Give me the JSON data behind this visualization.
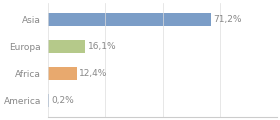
{
  "categories": [
    "Asia",
    "Europa",
    "Africa",
    "America"
  ],
  "values": [
    71.2,
    16.1,
    12.4,
    0.2
  ],
  "labels": [
    "71,2%",
    "16,1%",
    "12,4%",
    "0,2%"
  ],
  "bar_colors": [
    "#7b9dc7",
    "#b5c98a",
    "#e8a96e",
    "#7b9dc7"
  ],
  "background_color": "#ffffff",
  "xlim": [
    0,
    100
  ],
  "label_fontsize": 6.5,
  "tick_fontsize": 6.5,
  "bar_height": 0.5,
  "tick_color": "#888888",
  "label_color": "#888888"
}
